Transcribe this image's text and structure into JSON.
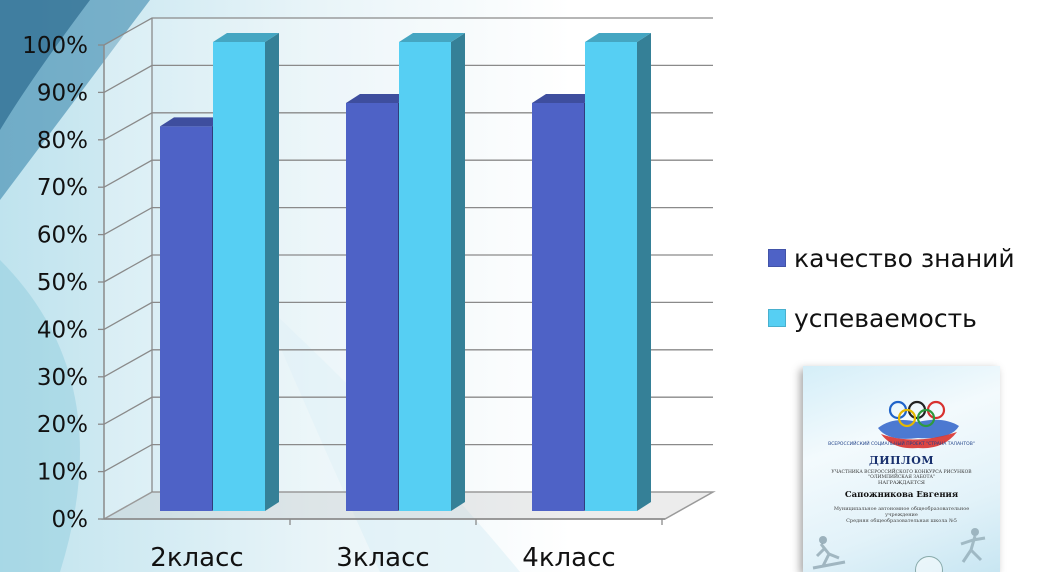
{
  "chart_data": {
    "type": "bar",
    "categories": [
      "2класс",
      "3класс",
      "4класс"
    ],
    "series": [
      {
        "name": "качество знаний",
        "values": [
          82,
          87,
          87
        ],
        "color": "#4e62c6"
      },
      {
        "name": "успеваемость",
        "values": [
          100,
          100,
          100
        ],
        "color": "#56cff3"
      }
    ],
    "ylim": [
      0,
      100
    ],
    "yticks": [
      "0%",
      "10%",
      "20%",
      "30%",
      "40%",
      "50%",
      "60%",
      "70%",
      "80%",
      "90%",
      "100%"
    ],
    "grid": true,
    "legend": "right",
    "style": "3d-column"
  },
  "diploma": {
    "project_line": "ВСЕРОССИЙСКИЙ СОЦИАЛЬНЫЙ ПРОЕКТ \"СТРАНА ТАЛАНТОВ\"",
    "title": "ДИПЛОМ",
    "subtitle": "УЧАСТНИКА ВСЕРОССИЙСКОГО КОНКУРСА РИСУНКОВ \"ОЛИМПИЙСКАЯ ЗАБОТА\"",
    "awarded": "НАГРАЖДАЕТСЯ",
    "name": "Сапожникова Евгения",
    "school_line1": "Муниципальное автономное общеобразовательное учреждение",
    "school_line2": "Средняя общеобразовательная школа №5"
  }
}
